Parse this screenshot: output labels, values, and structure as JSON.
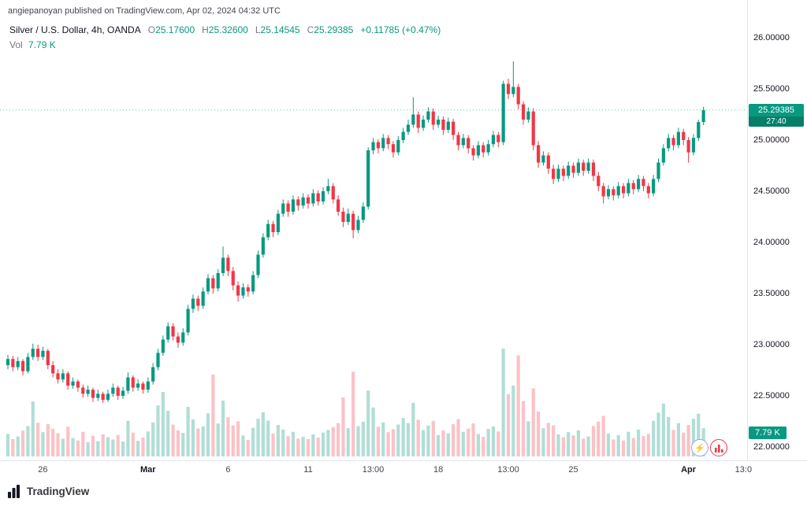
{
  "attribution": "angiepanoyan published on TradingView.com, Apr 02, 2024 04:32 UTC",
  "legend": {
    "symbol": "Silver / U.S. Dollar, 4h, OANDA",
    "ohlc": [
      {
        "label": "O",
        "value": "25.17600"
      },
      {
        "label": "H",
        "value": "25.32600"
      },
      {
        "label": "L",
        "value": "25.14545"
      },
      {
        "label": "C",
        "value": "25.29385"
      }
    ],
    "change": "+0.11785 (+0.47%)",
    "vol_label": "Vol",
    "vol_value": "7.79 K"
  },
  "badges": {
    "price": "25.29385",
    "countdown": "27:40",
    "volume": "7.79 K"
  },
  "axes": {
    "price_ticks": [
      {
        "label": "26.00000",
        "value": 26.0
      },
      {
        "label": "25.50000",
        "value": 25.5
      },
      {
        "label": "25.00000",
        "value": 25.0
      },
      {
        "label": "24.50000",
        "value": 24.5
      },
      {
        "label": "24.00000",
        "value": 24.0
      },
      {
        "label": "23.50000",
        "value": 23.5
      },
      {
        "label": "23.00000",
        "value": 23.0
      },
      {
        "label": "22.50000",
        "value": 22.5
      },
      {
        "label": "22.00000",
        "value": 22.0
      }
    ],
    "time_ticks": [
      {
        "label": "26",
        "index": 7,
        "bold": false
      },
      {
        "label": "Mar",
        "index": 28,
        "bold": true
      },
      {
        "label": "6",
        "index": 44,
        "bold": false
      },
      {
        "label": "11",
        "index": 60,
        "bold": false
      },
      {
        "label": "13:00",
        "index": 73,
        "bold": false
      },
      {
        "label": "18",
        "index": 86,
        "bold": false
      },
      {
        "label": "13:00",
        "index": 100,
        "bold": false
      },
      {
        "label": "25",
        "index": 113,
        "bold": false
      },
      {
        "label": "Apr",
        "index": 136,
        "bold": true
      },
      {
        "label": "13:0",
        "index": 147,
        "bold": false
      }
    ]
  },
  "footer": {
    "brand": "TradingView"
  },
  "chart_data": {
    "type": "candlestick+volume",
    "title": "Silver / U.S. Dollar, 4h, OANDA",
    "symbol": "Silver / U.S. Dollar",
    "interval": "4h",
    "exchange": "OANDA",
    "last": {
      "open": 25.176,
      "high": 25.326,
      "low": 25.14545,
      "close": 25.29385,
      "change": 0.11785,
      "change_pct": 0.47,
      "volume_k": 7.79,
      "countdown": "27:40"
    },
    "ylim": [
      21.95,
      26.15
    ],
    "volume_unit": "K",
    "colors": {
      "up": "#089981",
      "down": "#f23645",
      "vol_up": "rgba(8,153,129,0.32)",
      "vol_down": "rgba(242,54,69,0.30)",
      "badge": "#089981",
      "axis_line": "#e0e3eb"
    },
    "ohlc_format": [
      "open",
      "high",
      "low",
      "close",
      "volume_k"
    ],
    "candles": [
      [
        22.8,
        22.9,
        22.76,
        22.86,
        6.2
      ],
      [
        22.86,
        22.89,
        22.74,
        22.78,
        4.8
      ],
      [
        22.78,
        22.88,
        22.75,
        22.84,
        5.5
      ],
      [
        22.84,
        22.86,
        22.7,
        22.74,
        7.1
      ],
      [
        22.74,
        22.92,
        22.72,
        22.88,
        8.4
      ],
      [
        22.88,
        23.01,
        22.85,
        22.96,
        15.2
      ],
      [
        22.96,
        23.0,
        22.84,
        22.88,
        9.3
      ],
      [
        22.88,
        22.98,
        22.85,
        22.94,
        6.7
      ],
      [
        22.94,
        22.96,
        22.76,
        22.8,
        8.9
      ],
      [
        22.8,
        22.84,
        22.68,
        22.72,
        7.6
      ],
      [
        22.72,
        22.76,
        22.62,
        22.66,
        6.4
      ],
      [
        22.66,
        22.76,
        22.63,
        22.72,
        4.9
      ],
      [
        22.72,
        22.74,
        22.56,
        22.6,
        8.2
      ],
      [
        22.6,
        22.68,
        22.57,
        22.64,
        5.1
      ],
      [
        22.64,
        22.66,
        22.54,
        22.58,
        4.4
      ],
      [
        22.58,
        22.61,
        22.48,
        22.52,
        6.8
      ],
      [
        22.52,
        22.6,
        22.49,
        22.56,
        3.9
      ],
      [
        22.56,
        22.58,
        22.44,
        22.48,
        5.7
      ],
      [
        22.48,
        22.56,
        22.45,
        22.52,
        4.2
      ],
      [
        22.52,
        22.54,
        22.43,
        22.46,
        6.1
      ],
      [
        22.46,
        22.56,
        22.44,
        22.52,
        5.3
      ],
      [
        22.52,
        22.62,
        22.49,
        22.58,
        4.7
      ],
      [
        22.58,
        22.6,
        22.46,
        22.5,
        5.9
      ],
      [
        22.5,
        22.59,
        22.47,
        22.55,
        4.1
      ],
      [
        22.55,
        22.73,
        22.52,
        22.68,
        9.8
      ],
      [
        22.68,
        22.7,
        22.54,
        22.58,
        6.6
      ],
      [
        22.58,
        22.66,
        22.55,
        22.62,
        4.3
      ],
      [
        22.62,
        22.64,
        22.52,
        22.56,
        5.2
      ],
      [
        22.56,
        22.68,
        22.53,
        22.64,
        6.9
      ],
      [
        22.64,
        22.82,
        22.61,
        22.78,
        9.4
      ],
      [
        22.78,
        22.96,
        22.75,
        22.92,
        14.1
      ],
      [
        22.92,
        23.09,
        22.89,
        23.05,
        17.8
      ],
      [
        23.05,
        23.22,
        23.02,
        23.18,
        12.6
      ],
      [
        23.18,
        23.21,
        23.04,
        23.08,
        8.8
      ],
      [
        23.08,
        23.12,
        22.97,
        23.02,
        7.2
      ],
      [
        23.02,
        23.16,
        22.99,
        23.12,
        6.5
      ],
      [
        23.12,
        23.39,
        23.09,
        23.35,
        13.7
      ],
      [
        23.35,
        23.49,
        23.31,
        23.45,
        10.2
      ],
      [
        23.45,
        23.48,
        23.33,
        23.38,
        7.7
      ],
      [
        23.38,
        23.56,
        23.35,
        23.52,
        8.3
      ],
      [
        23.52,
        23.69,
        23.49,
        23.65,
        11.9
      ],
      [
        23.65,
        23.68,
        23.5,
        23.55,
        22.6
      ],
      [
        23.55,
        23.74,
        23.52,
        23.7,
        9.1
      ],
      [
        23.7,
        23.96,
        23.67,
        23.85,
        15.4
      ],
      [
        23.85,
        23.88,
        23.67,
        23.72,
        10.8
      ],
      [
        23.72,
        23.76,
        23.53,
        23.58,
        8.6
      ],
      [
        23.58,
        23.62,
        23.42,
        23.48,
        9.7
      ],
      [
        23.48,
        23.6,
        23.45,
        23.56,
        5.8
      ],
      [
        23.56,
        23.59,
        23.47,
        23.52,
        4.6
      ],
      [
        23.52,
        23.72,
        23.49,
        23.68,
        7.9
      ],
      [
        23.68,
        23.92,
        23.65,
        23.88,
        10.4
      ],
      [
        23.88,
        24.09,
        23.85,
        24.05,
        12.2
      ],
      [
        24.05,
        24.22,
        24.02,
        24.18,
        9.9
      ],
      [
        24.18,
        24.21,
        24.05,
        24.1,
        6.3
      ],
      [
        24.1,
        24.32,
        24.07,
        24.28,
        8.7
      ],
      [
        24.28,
        24.42,
        24.25,
        24.38,
        7.4
      ],
      [
        24.38,
        24.41,
        24.25,
        24.3,
        5.6
      ],
      [
        24.3,
        24.46,
        24.27,
        24.42,
        6.8
      ],
      [
        24.42,
        24.45,
        24.31,
        24.36,
        4.9
      ],
      [
        24.36,
        24.48,
        24.33,
        24.44,
        5.4
      ],
      [
        24.44,
        24.47,
        24.33,
        24.38,
        4.8
      ],
      [
        24.38,
        24.52,
        24.35,
        24.48,
        6.1
      ],
      [
        24.48,
        24.51,
        24.36,
        24.4,
        5.2
      ],
      [
        24.4,
        24.54,
        24.37,
        24.5,
        6.6
      ],
      [
        24.5,
        24.62,
        24.47,
        24.55,
        7.3
      ],
      [
        24.55,
        24.58,
        24.38,
        24.42,
        8.1
      ],
      [
        24.42,
        24.46,
        24.26,
        24.3,
        9.2
      ],
      [
        24.3,
        24.34,
        24.15,
        24.2,
        16.3
      ],
      [
        24.2,
        24.33,
        24.17,
        24.28,
        7.8
      ],
      [
        24.28,
        24.31,
        24.04,
        24.12,
        23.4
      ],
      [
        24.12,
        24.26,
        24.09,
        24.22,
        8.4
      ],
      [
        24.22,
        24.39,
        24.19,
        24.35,
        9.6
      ],
      [
        24.35,
        24.93,
        24.32,
        24.9,
        18.2
      ],
      [
        24.9,
        25.02,
        24.86,
        24.98,
        13.5
      ],
      [
        24.98,
        25.01,
        24.87,
        24.92,
        8.2
      ],
      [
        24.92,
        25.06,
        24.89,
        25.02,
        9.4
      ],
      [
        25.02,
        25.05,
        24.91,
        24.96,
        6.7
      ],
      [
        24.96,
        24.99,
        24.83,
        24.88,
        7.5
      ],
      [
        24.88,
        25.04,
        24.85,
        25.0,
        8.8
      ],
      [
        25.0,
        25.12,
        24.97,
        25.08,
        10.6
      ],
      [
        25.08,
        25.2,
        25.05,
        25.15,
        9.2
      ],
      [
        25.15,
        25.42,
        25.12,
        25.25,
        14.8
      ],
      [
        25.25,
        25.28,
        25.07,
        25.12,
        10.1
      ],
      [
        25.12,
        25.24,
        25.09,
        25.2,
        7.3
      ],
      [
        25.2,
        25.32,
        25.17,
        25.28,
        8.5
      ],
      [
        25.28,
        25.31,
        25.1,
        25.15,
        9.8
      ],
      [
        25.15,
        25.24,
        25.12,
        25.2,
        5.9
      ],
      [
        25.2,
        25.23,
        25.05,
        25.1,
        7.2
      ],
      [
        25.1,
        25.22,
        25.07,
        25.18,
        6.4
      ],
      [
        25.18,
        25.21,
        25.0,
        25.05,
        8.9
      ],
      [
        25.05,
        25.08,
        24.9,
        24.95,
        10.3
      ],
      [
        24.95,
        25.06,
        24.92,
        25.02,
        6.8
      ],
      [
        25.02,
        25.05,
        24.87,
        24.92,
        7.7
      ],
      [
        24.92,
        24.95,
        24.8,
        24.85,
        9.1
      ],
      [
        24.85,
        24.99,
        24.82,
        24.95,
        6.2
      ],
      [
        24.95,
        24.98,
        24.83,
        24.88,
        5.4
      ],
      [
        24.88,
        25.0,
        24.85,
        24.96,
        7.6
      ],
      [
        24.96,
        25.09,
        24.93,
        25.05,
        8.3
      ],
      [
        25.05,
        25.08,
        24.93,
        24.98,
        6.9
      ],
      [
        24.98,
        25.58,
        24.95,
        25.55,
        29.8
      ],
      [
        25.55,
        25.6,
        25.4,
        25.45,
        17.2
      ],
      [
        25.45,
        25.77,
        25.42,
        25.52,
        19.6
      ],
      [
        25.52,
        25.55,
        25.3,
        25.35,
        27.9
      ],
      [
        25.35,
        25.38,
        25.15,
        25.2,
        15.3
      ],
      [
        25.2,
        25.32,
        25.17,
        25.28,
        9.7
      ],
      [
        25.28,
        25.31,
        24.9,
        24.95,
        18.8
      ],
      [
        24.95,
        24.99,
        24.73,
        24.78,
        12.4
      ],
      [
        24.78,
        24.89,
        24.75,
        24.85,
        7.8
      ],
      [
        24.85,
        24.88,
        24.67,
        24.72,
        9.3
      ],
      [
        24.72,
        24.76,
        24.57,
        24.62,
        8.6
      ],
      [
        24.62,
        24.76,
        24.59,
        24.72,
        6.1
      ],
      [
        24.72,
        24.75,
        24.6,
        24.65,
        5.3
      ],
      [
        24.65,
        24.79,
        24.62,
        24.75,
        6.7
      ],
      [
        24.75,
        24.78,
        24.63,
        24.68,
        5.8
      ],
      [
        24.68,
        24.82,
        24.65,
        24.78,
        7.2
      ],
      [
        24.78,
        24.81,
        24.65,
        24.7,
        4.9
      ],
      [
        24.7,
        24.82,
        24.67,
        24.78,
        5.5
      ],
      [
        24.78,
        24.81,
        24.6,
        24.65,
        8.4
      ],
      [
        24.65,
        24.69,
        24.5,
        24.55,
        9.6
      ],
      [
        24.55,
        24.58,
        24.38,
        24.45,
        11.2
      ],
      [
        24.45,
        24.56,
        24.42,
        24.52,
        6.3
      ],
      [
        24.52,
        24.55,
        24.41,
        24.46,
        4.7
      ],
      [
        24.46,
        24.59,
        24.43,
        24.55,
        5.9
      ],
      [
        24.55,
        24.58,
        24.43,
        24.48,
        4.4
      ],
      [
        24.48,
        24.62,
        24.45,
        24.58,
        6.8
      ],
      [
        24.58,
        24.61,
        24.47,
        24.52,
        5.1
      ],
      [
        24.52,
        24.66,
        24.49,
        24.62,
        7.4
      ],
      [
        24.62,
        24.65,
        24.5,
        24.55,
        5.6
      ],
      [
        24.55,
        24.58,
        24.43,
        24.48,
        6.2
      ],
      [
        24.48,
        24.66,
        24.45,
        24.62,
        9.8
      ],
      [
        24.62,
        24.82,
        24.59,
        24.78,
        12.1
      ],
      [
        24.78,
        24.96,
        24.75,
        24.92,
        14.6
      ],
      [
        24.92,
        25.06,
        24.89,
        25.02,
        10.9
      ],
      [
        25.02,
        25.05,
        24.9,
        24.95,
        7.3
      ],
      [
        24.95,
        25.12,
        24.92,
        25.08,
        9.2
      ],
      [
        25.08,
        25.11,
        24.95,
        25.0,
        6.6
      ],
      [
        25.0,
        25.03,
        24.78,
        24.88,
        8.7
      ],
      [
        24.88,
        25.06,
        24.85,
        25.02,
        10.4
      ],
      [
        25.02,
        25.2,
        24.99,
        25.176,
        11.8
      ],
      [
        25.176,
        25.326,
        25.14545,
        25.29385,
        7.79
      ]
    ]
  }
}
